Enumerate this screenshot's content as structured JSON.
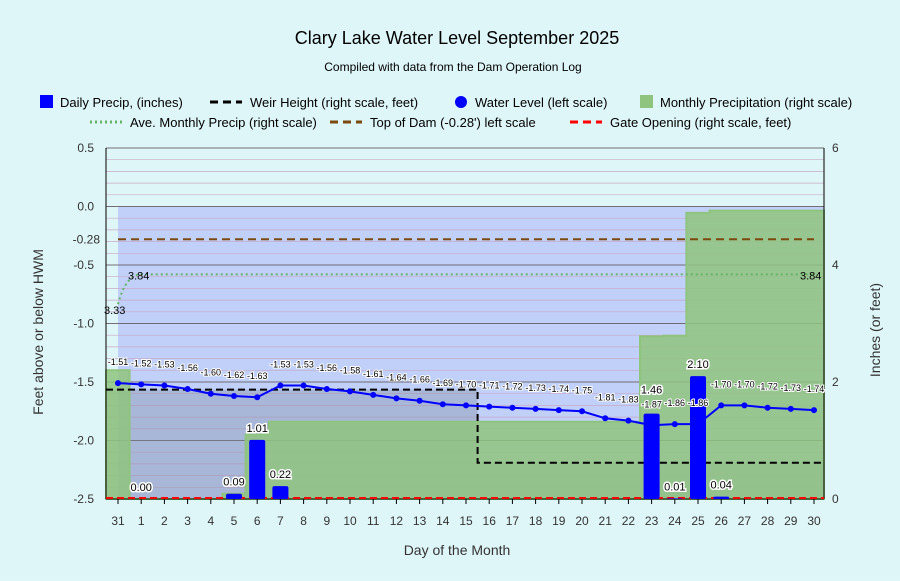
{
  "chart_data": {
    "type": "bar+line",
    "title": "Clary Lake Water Level September 2025",
    "subtitle": "Compiled with data from the Dam Operation Log",
    "xlabel": "Day of the Month",
    "ylabel_left": "Feet above or below HWM",
    "ylabel_right": "Inches (or feet)",
    "ylim_left": [
      -2.5,
      0.5
    ],
    "ylim_right": [
      0,
      6
    ],
    "left_ticks": [
      "0.5",
      "0.0",
      "-0.5",
      "-1.0",
      "-1.5",
      "-2.0",
      "-2.5"
    ],
    "right_ticks": [
      "6",
      "4",
      "2",
      "0"
    ],
    "days": [
      "31",
      "1",
      "2",
      "3",
      "4",
      "5",
      "6",
      "7",
      "8",
      "9",
      "10",
      "11",
      "12",
      "13",
      "14",
      "15",
      "16",
      "17",
      "18",
      "19",
      "20",
      "21",
      "22",
      "23",
      "24",
      "25",
      "26",
      "27",
      "28",
      "29",
      "30"
    ],
    "legend": [
      "Daily Precip, (inches)",
      "Weir Height (right scale, feet)",
      "Water Level (left scale)",
      "Monthly Precipitation (right scale)",
      "Ave. Monthly Precip (right scale)",
      "Top of Dam (-0.28') left scale",
      "Gate Opening (right scale, feet)"
    ],
    "series": [
      {
        "name": "Water Level (left scale)",
        "values": [
          -1.51,
          -1.52,
          -1.53,
          -1.56,
          -1.6,
          -1.62,
          -1.63,
          -1.53,
          -1.53,
          -1.56,
          -1.58,
          -1.61,
          -1.64,
          -1.66,
          -1.69,
          -1.7,
          -1.71,
          -1.72,
          -1.73,
          -1.74,
          -1.75,
          -1.81,
          -1.83,
          -1.87,
          -1.86,
          -1.86,
          -1.7,
          -1.7,
          -1.72,
          -1.73,
          -1.74
        ]
      },
      {
        "name": "Daily Precip, (inches)",
        "values": [
          null,
          0.0,
          0,
          0,
          0,
          0.09,
          1.01,
          0.22,
          0,
          0,
          0,
          0,
          0,
          0,
          0,
          0,
          0,
          0,
          0,
          0,
          0,
          0,
          0,
          1.46,
          0.01,
          2.1,
          0.04,
          0,
          0,
          0,
          0
        ],
        "labels": {
          "1": "0.00",
          "5": "0.09",
          "6": "1.01",
          "7": "0.22",
          "23": "1.46",
          "24": "0.01",
          "25": "2.10",
          "26": "0.04"
        }
      },
      {
        "name": "Monthly Precipitation (right scale)",
        "values": [
          2.2,
          0,
          0,
          0,
          0,
          0.09,
          1.1,
          1.32,
          1.32,
          1.32,
          1.32,
          1.32,
          1.32,
          1.32,
          1.32,
          1.32,
          1.32,
          1.32,
          1.32,
          1.32,
          1.32,
          1.32,
          1.32,
          2.78,
          2.79,
          4.89,
          4.93,
          4.93,
          4.93,
          4.93,
          4.93
        ]
      },
      {
        "name": "Weir Height (right scale, feet)",
        "values": [
          1.87,
          1.87,
          1.87,
          1.87,
          1.87,
          1.87,
          1.87,
          1.87,
          1.87,
          1.87,
          1.87,
          1.87,
          1.87,
          1.87,
          1.87,
          1.87,
          0.62,
          0.62,
          0.62,
          0.62,
          0.62,
          0.62,
          0.62,
          0.62,
          0.62,
          0.62,
          0.62,
          0.62,
          0.62,
          0.62,
          0.62
        ]
      },
      {
        "name": "Ave. Monthly Precip (right scale)",
        "start": 3.33,
        "value": 3.84,
        "labels": [
          "3.33",
          "3.84",
          "3.84"
        ]
      },
      {
        "name": "Top of Dam (-0.28') left scale",
        "value": -0.28,
        "label": "-0.28"
      },
      {
        "name": "Gate Opening (right scale, feet)",
        "value": 0
      }
    ],
    "colors": {
      "precip": "#0000ff",
      "water": "#0000ff",
      "monthly": "#8fc47f",
      "weir": "#000000",
      "avg": "#66b266",
      "dam": "#7a4a10",
      "gate": "#ff0000",
      "hwm_fill": "#c0d0f8"
    }
  }
}
